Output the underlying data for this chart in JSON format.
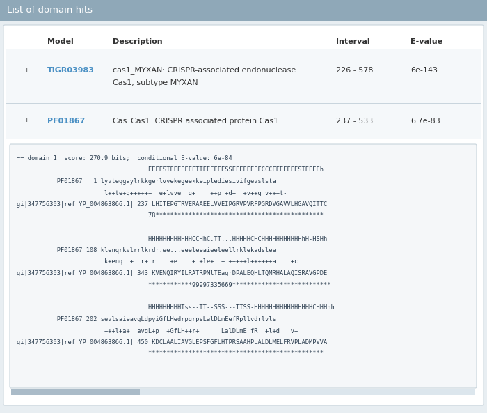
{
  "title": "List of domain hits",
  "title_bg": "#8fa8b8",
  "title_color": "#ffffff",
  "bg_color": "#e8eef2",
  "panel_bg": "#ffffff",
  "border_color": "#c8d4dc",
  "header_row": [
    "Model",
    "Description",
    "Interval",
    "E-value"
  ],
  "header_color": "#333333",
  "rows": [
    {
      "plus": "+",
      "model": "TIGR03983",
      "model_color": "#4a90c4",
      "desc_line1": "cas1_MYXAN: CRISPR-associated endonuclease",
      "desc_line2": "Cas1, subtype MYXAN",
      "interval": "226 - 578",
      "evalue": "6e-143",
      "row_bg": "#f5f8fa"
    },
    {
      "plus": "±",
      "model": "PF01867",
      "model_color": "#4a90c4",
      "desc_line1": "Cas_Cas1: CRISPR associated protein Cas1",
      "desc_line2": "",
      "interval": "237 - 533",
      "evalue": "6.7e-83",
      "row_bg": "#f5f8fa"
    }
  ],
  "mono_box_bg": "#f5f7f9",
  "mono_box_border": "#c8d4dc",
  "mono_lines": [
    "== domain 1  score: 270.9 bits;  conditional E-value: 6e-84",
    "                                    EEEESTEEEEEEETTEEEEEESSEEEEEEEECCCEEEEEEESTEEEEh",
    "           PF01867   1 lyvteqgaylrkkgerlvvekegeekkeiplediesivifgevslsta",
    "                        l++te+g++++++  e+lvve  g+    ++p +d+  +v++g v+++t-",
    "gi|347756303|ref|YP_004863866.1| 237 LHITEPGTRVERAAEELVVEIPGRVPVRFPGRDVGAVVLHGAVQITTC",
    "                                    78**********************************************",
    "",
    "                                    HHHHHHHHHHHHCCHhC.TT...HHHHHCHCHHHHHHHHHHHhH-HSHh",
    "           PF01867 108 klenqrkvlrrlkrdr.ee...eeeleeaieeleellrklekadslee",
    "                        k+enq  +  r+ r    +e    + +le+  + +++++l++++++a    +c",
    "gi|347756303|ref|YP_004863866.1| 343 KVENQIRYILRATRPMlTEagrDPALEQHLTQMRHALAQISRAVGPDE",
    "                                    ************99997335669***************************",
    "",
    "                                    HHHHHHHHHTss--TT--SSS---TTSS-HHHHHHHHHHHHHHHHCHHHhh",
    "           PF01867 202 sevlsaieavgLdpyiGfLHedrpgrpsLalDLmEefRpllvdrlvls",
    "                        +++l+a+  avgL+p  +GfLH++r+      LalDLmE fR  +l+d   v+",
    "gi|347756303|ref|YP_004863866.1| 450 KDCLAALIAVGLEPSFGFLHTPRSAAHPLALDLMELFRVPLADMPVVA",
    "                                    ************************************************"
  ],
  "scrollbar_color": "#aabbc8",
  "font_size_title": 9.5,
  "font_size_header": 8,
  "font_size_row": 8,
  "font_size_mono": 6.2
}
